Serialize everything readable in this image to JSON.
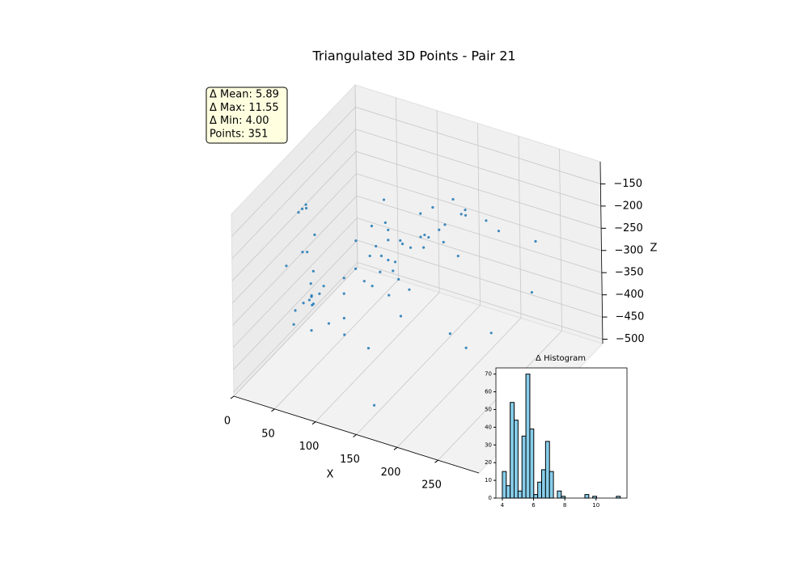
{
  "chart_data": [
    {
      "type": "scatter3d",
      "title": "Triangulated 3D Points - Pair 21",
      "annotations": [
        "Δ Mean: 5.89",
        "Δ Max: 11.55",
        "Δ Min: 4.00",
        "Points: 351"
      ],
      "xlabel": "X",
      "zlabel": "Z",
      "color": "#1f77b4",
      "xlim": [
        0,
        300
      ],
      "ylim": [
        -150,
        150
      ],
      "zlim": [
        -510,
        -100
      ],
      "xticks": [
        0,
        50,
        100,
        150,
        200,
        250
      ],
      "zticks": [
        {
          "value": -150,
          "label": "−150"
        },
        {
          "value": -200,
          "label": "−200"
        },
        {
          "value": -250,
          "label": "−250"
        },
        {
          "value": -300,
          "label": "−300"
        },
        {
          "value": -350,
          "label": "−350"
        },
        {
          "value": -400,
          "label": "−400"
        },
        {
          "value": -450,
          "label": "−450"
        },
        {
          "value": -500,
          "label": "−500"
        }
      ],
      "grid": true,
      "x": [
        100,
        110,
        120,
        105,
        130,
        115,
        125,
        95,
        140,
        135,
        150,
        160,
        145,
        170,
        155,
        165,
        180,
        118,
        128,
        108,
        90,
        85,
        138,
        112,
        122,
        175,
        190,
        200,
        185,
        205,
        160,
        150,
        130,
        100,
        170,
        210,
        250,
        260,
        10,
        15,
        5,
        20,
        12,
        25,
        18,
        8,
        30,
        22,
        15,
        28,
        35,
        0,
        5,
        10,
        12,
        8,
        14,
        30,
        20,
        157,
        60,
        70,
        50,
        80,
        65,
        40,
        120,
        200,
        230,
        240,
        90,
        60
      ],
      "y": [
        0,
        10,
        -10,
        20,
        0,
        -20,
        15,
        -5,
        5,
        -15,
        10,
        0,
        20,
        -10,
        30,
        25,
        10,
        5,
        -25,
        30,
        10,
        -20,
        40,
        0,
        -30,
        40,
        30,
        20,
        50,
        60,
        45,
        -40,
        20,
        -10,
        60,
        80,
        90,
        60,
        0,
        10,
        -10,
        0,
        20,
        -15,
        5,
        -20,
        10,
        -5,
        15,
        25,
        -10,
        30,
        -30,
        0,
        5,
        -5,
        2,
        -10,
        -20,
        -120,
        0,
        -20,
        20,
        10,
        -10,
        -40,
        -60,
        -20,
        20,
        -60,
        40,
        30
      ],
      "z": [
        -260,
        -250,
        -270,
        -240,
        -230,
        -290,
        -255,
        -280,
        -245,
        -300,
        -220,
        -200,
        -180,
        -190,
        -170,
        -210,
        -175,
        -310,
        -330,
        -320,
        -230,
        -300,
        -280,
        -200,
        -240,
        -150,
        -165,
        -140,
        -190,
        -200,
        -260,
        -350,
        -360,
        -340,
        -300,
        -240,
        -250,
        -330,
        -440,
        -430,
        -450,
        -420,
        -460,
        -410,
        -445,
        -470,
        -400,
        -490,
        -380,
        -500,
        -395,
        -360,
        -330,
        -228,
        -222,
        -232,
        -226,
        -265,
        -300,
        -469,
        -390,
        -420,
        -380,
        -360,
        -470,
        -340,
        -420,
        -380,
        -400,
        -350,
        -200,
        -300
      ]
    },
    {
      "type": "histogram",
      "title": "Δ Histogram",
      "color": "#87ceeb",
      "bins": [
        4,
        4.252,
        4.503,
        4.755,
        5.007,
        5.258,
        5.51,
        5.762,
        6.013,
        6.265,
        6.517,
        6.768,
        7.02,
        7.272,
        7.523,
        7.775,
        8.027,
        8.278,
        8.53,
        8.782,
        9.033,
        9.285,
        9.537,
        9.788,
        10.04,
        10.292,
        10.543,
        10.795,
        11.047,
        11.298,
        11.55
      ],
      "counts": [
        15,
        7,
        54,
        44,
        4,
        35,
        70,
        39,
        2,
        9,
        16,
        32,
        15,
        0,
        4,
        1,
        0,
        0,
        0,
        0,
        0,
        2,
        0,
        1,
        0,
        0,
        0,
        0,
        0,
        1
      ],
      "xlim": [
        3.59,
        11.98
      ],
      "ylim": [
        0,
        73.5
      ],
      "xticks": [
        4,
        6,
        8,
        10
      ],
      "yticks": [
        0,
        10,
        20,
        30,
        40,
        50,
        60,
        70
      ]
    }
  ]
}
